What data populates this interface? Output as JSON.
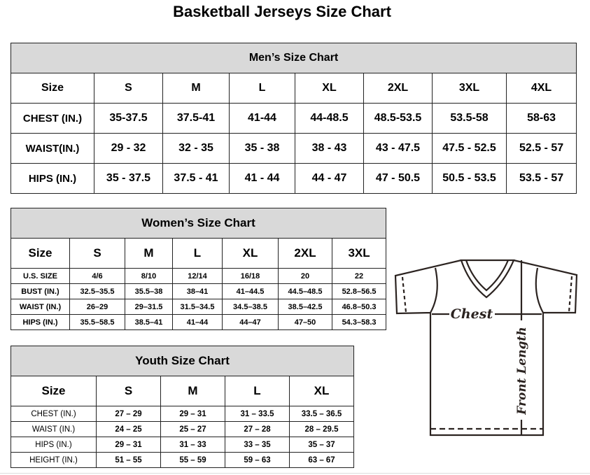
{
  "title": "Basketball Jerseys Size Chart",
  "men": {
    "title": "Men’s Size Chart",
    "header": [
      "Size",
      "S",
      "M",
      "L",
      "XL",
      "2XL",
      "3XL",
      "4XL"
    ],
    "rows": [
      [
        "CHEST (IN.)",
        "35-37.5",
        "37.5-41",
        "41-44",
        "44-48.5",
        "48.5-53.5",
        "53.5-58",
        "58-63"
      ],
      [
        "WAIST(IN.)",
        "29 - 32",
        "32 - 35",
        "35 - 38",
        "38 - 43",
        "43 - 47.5",
        "47.5 - 52.5",
        "52.5 - 57"
      ],
      [
        "HIPS (IN.)",
        "35 - 37.5",
        "37.5 - 41",
        "41 - 44",
        "44 - 47",
        "47 - 50.5",
        "50.5 - 53.5",
        "53.5 - 57"
      ]
    ]
  },
  "women": {
    "title": "Women’s Size Chart",
    "header": [
      "Size",
      "S",
      "M",
      "L",
      "XL",
      "2XL",
      "3XL"
    ],
    "rows": [
      [
        "U.S.  SIZE",
        "4/6",
        "8/10",
        "12/14",
        "16/18",
        "20",
        "22"
      ],
      [
        "BUST  (IN.)",
        "32.5–35.5",
        "35.5–38",
        "38–41",
        "41–44.5",
        "44.5–48.5",
        "52.8–56.5"
      ],
      [
        "WAIST  (IN.)",
        "26–29",
        "29–31.5",
        "31.5–34.5",
        "34.5–38.5",
        "38.5–42.5",
        "46.8–50.3"
      ],
      [
        "HIPS  (IN.)",
        "35.5–58.5",
        "38.5–41",
        "41–44",
        "44–47",
        "47–50",
        "54.3–58.3"
      ]
    ]
  },
  "youth": {
    "title": "Youth Size Chart",
    "header": [
      "Size",
      "S",
      "M",
      "L",
      "XL"
    ],
    "rows": [
      [
        "CHEST  (IN.)",
        "27  –  29",
        "29  –  31",
        "31  –  33.5",
        "33.5  –  36.5"
      ],
      [
        "WAIST  (IN.)",
        "24  –  25",
        "25  –  27",
        "27  –  28",
        "28  –  29.5"
      ],
      [
        "HIPS  (IN.)",
        "29  –  31",
        "31  –  33",
        "33  –  35",
        "35  –  37"
      ],
      [
        "HEIGHT  (IN.)",
        "51  –  55",
        "55  –  59",
        "59  –  63",
        "63  –  67"
      ]
    ]
  },
  "diagram": {
    "chest_label": "Chest",
    "length_label": "Front Length",
    "line_color": "#2b2320"
  }
}
